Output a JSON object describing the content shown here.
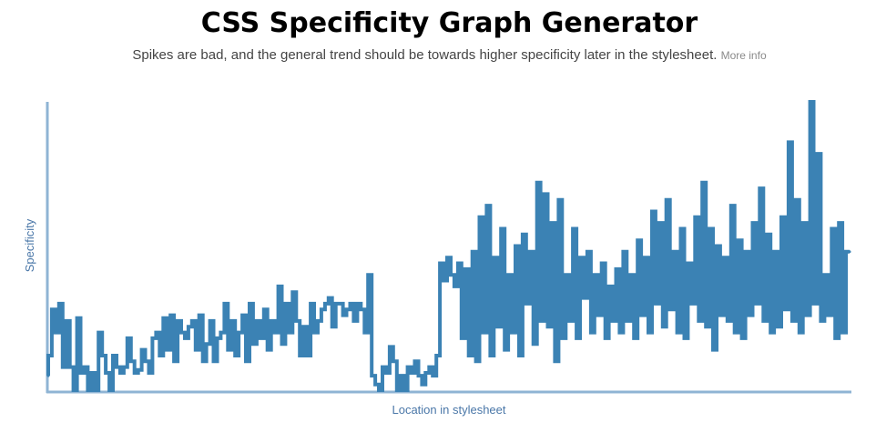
{
  "page": {
    "title": "CSS Specificity Graph Generator",
    "subtitle": "Spikes are bad, and the general trend should be towards higher specificity later in the stylesheet.",
    "more_info_label": "More info"
  },
  "colors": {
    "line": "#3b82b4",
    "axis": "#8fb4d4",
    "axis_label": "#4a77a8"
  },
  "chart_data": {
    "type": "line",
    "title": "",
    "xlabel": "Location in stylesheet",
    "ylabel": "Specificity",
    "ylim": [
      0,
      100
    ],
    "grid": false,
    "note": "values estimated; no tick labels shown",
    "values": [
      5,
      12,
      28,
      20,
      30,
      8,
      24,
      8,
      0,
      25,
      6,
      8,
      0,
      6,
      0,
      20,
      12,
      6,
      0,
      12,
      8,
      6,
      8,
      18,
      10,
      6,
      7,
      14,
      10,
      6,
      18,
      20,
      12,
      25,
      14,
      26,
      10,
      24,
      20,
      18,
      22,
      24,
      14,
      26,
      10,
      16,
      24,
      10,
      18,
      20,
      30,
      14,
      24,
      12,
      20,
      26,
      10,
      30,
      16,
      24,
      18,
      28,
      14,
      24,
      20,
      36,
      16,
      30,
      20,
      34,
      24,
      12,
      22,
      12,
      30,
      20,
      24,
      28,
      30,
      32,
      22,
      30,
      30,
      26,
      28,
      30,
      24,
      30,
      28,
      20,
      40,
      5,
      2,
      0,
      8,
      6,
      15,
      10,
      0,
      5,
      0,
      8,
      6,
      10,
      5,
      2,
      6,
      8,
      5,
      12,
      44,
      38,
      46,
      40,
      36,
      44,
      18,
      42,
      12,
      48,
      10,
      60,
      20,
      64,
      12,
      46,
      22,
      56,
      14,
      40,
      20,
      50,
      12,
      54,
      30,
      48,
      16,
      72,
      24,
      68,
      22,
      58,
      10,
      66,
      18,
      40,
      24,
      56,
      18,
      46,
      32,
      48,
      20,
      40,
      26,
      44,
      18,
      36,
      24,
      42,
      20,
      48,
      24,
      40,
      18,
      52,
      26,
      46,
      20,
      62,
      30,
      58,
      22,
      66,
      28,
      48,
      20,
      56,
      18,
      44,
      30,
      60,
      24,
      72,
      22,
      56,
      14,
      50,
      26,
      46,
      24,
      64,
      20,
      52,
      18,
      48,
      26,
      58,
      30,
      70,
      24,
      54,
      20,
      48,
      22,
      60,
      28,
      86,
      24,
      66,
      20,
      58,
      26,
      100,
      30,
      82,
      24,
      40,
      26,
      56,
      18,
      58,
      20,
      48
    ]
  }
}
